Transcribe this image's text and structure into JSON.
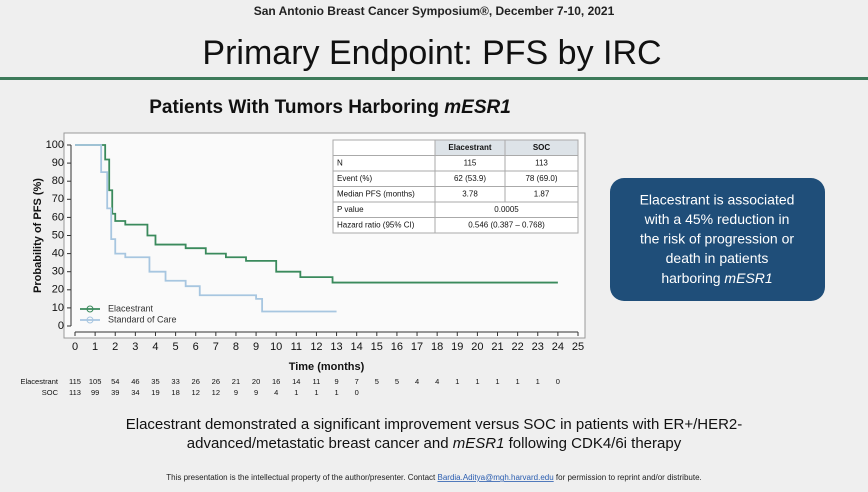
{
  "header": "San Antonio Breast Cancer Symposium®, December 7-10, 2021",
  "title": "Primary Endpoint: PFS by IRC",
  "chart_data": {
    "type": "line",
    "title": [
      "Patients With Tumors Harboring ",
      "mESR1"
    ],
    "x_label": "Time (months)",
    "y_label": "Probability of PFS (%)",
    "xlim": [
      0,
      25
    ],
    "xticks": [
      0,
      1,
      2,
      3,
      4,
      5,
      6,
      7,
      8,
      9,
      10,
      11,
      12,
      13,
      14,
      15,
      16,
      17,
      18,
      19,
      20,
      21,
      22,
      23,
      24,
      25
    ],
    "ylim": [
      0,
      100
    ],
    "yticks": [
      0,
      10,
      20,
      30,
      40,
      50,
      60,
      70,
      80,
      90,
      100
    ],
    "legend": "lower left",
    "series": [
      {
        "name": "Elacestrant",
        "color": "#3a8a5c",
        "x": [
          0,
          1.5,
          1.5,
          1.7,
          1.7,
          1.85,
          1.85,
          2.0,
          2.0,
          2.5,
          2.5,
          3.6,
          3.6,
          4.0,
          4.0,
          5.5,
          5.5,
          6.5,
          6.5,
          7.5,
          7.5,
          8.5,
          8.5,
          10.0,
          10.0,
          11.2,
          11.2,
          12.8,
          12.8,
          24.0
        ],
        "values": [
          100,
          100,
          92,
          92,
          75,
          75,
          62,
          62,
          58,
          58,
          56,
          56,
          50,
          50,
          45,
          45,
          43,
          43,
          40,
          40,
          38,
          38,
          36,
          36,
          30,
          30,
          27,
          27,
          24,
          24
        ]
      },
      {
        "name": "Standard of Care",
        "color": "#a7c6e0",
        "x": [
          0,
          1.3,
          1.3,
          1.6,
          1.6,
          1.8,
          1.8,
          2.0,
          2.0,
          2.5,
          2.5,
          3.7,
          3.7,
          4.5,
          4.5,
          5.5,
          5.5,
          6.2,
          6.2,
          9.0,
          9.0,
          9.3,
          9.3,
          13.0
        ],
        "values": [
          100,
          100,
          85,
          85,
          65,
          65,
          48,
          48,
          40,
          40,
          38,
          38,
          30,
          30,
          25,
          25,
          22,
          22,
          17,
          17,
          15,
          15,
          8,
          8
        ]
      }
    ],
    "inset_table": {
      "header": [
        "Elacestrant",
        "SOC"
      ],
      "rows": [
        [
          "N",
          "115",
          "113"
        ],
        [
          "Event (%)",
          "62 (53.9)",
          "78 (69.0)"
        ],
        [
          "Median PFS (months)",
          "3.78",
          "1.87"
        ],
        [
          "P value",
          "0.0005"
        ],
        [
          "Hazard ratio (95% CI)",
          "0.546 (0.387 – 0.768)"
        ]
      ]
    },
    "at_risk": [
      {
        "label": "Elacestrant",
        "values": [
          115,
          105,
          54,
          46,
          35,
          33,
          26,
          26,
          21,
          20,
          16,
          14,
          11,
          9,
          7,
          5,
          5,
          4,
          4,
          1,
          1,
          1,
          1,
          1,
          0
        ]
      },
      {
        "label": "SOC",
        "values": [
          113,
          99,
          39,
          34,
          19,
          18,
          12,
          12,
          9,
          9,
          4,
          1,
          1,
          1,
          0
        ]
      }
    ]
  },
  "callout": {
    "lines": [
      "Elacestrant is associated",
      "with a 45% reduction in",
      "the risk of progression or",
      "death in patients"
    ],
    "last": [
      "harboring ",
      "mESR1"
    ]
  },
  "conclusion": {
    "line1": "Elacestrant demonstrated a significant improvement versus SOC in patients with ER+/HER2-",
    "line2": [
      "advanced/metastatic breast cancer and ",
      "mESR1",
      " following CDK4/6i therapy"
    ]
  },
  "footer": [
    "This presentation is the intellectual property of the author/presenter. Contact ",
    "Bardia.Aditya@mgh.harvard.edu",
    " for permission to reprint and/or distribute."
  ]
}
